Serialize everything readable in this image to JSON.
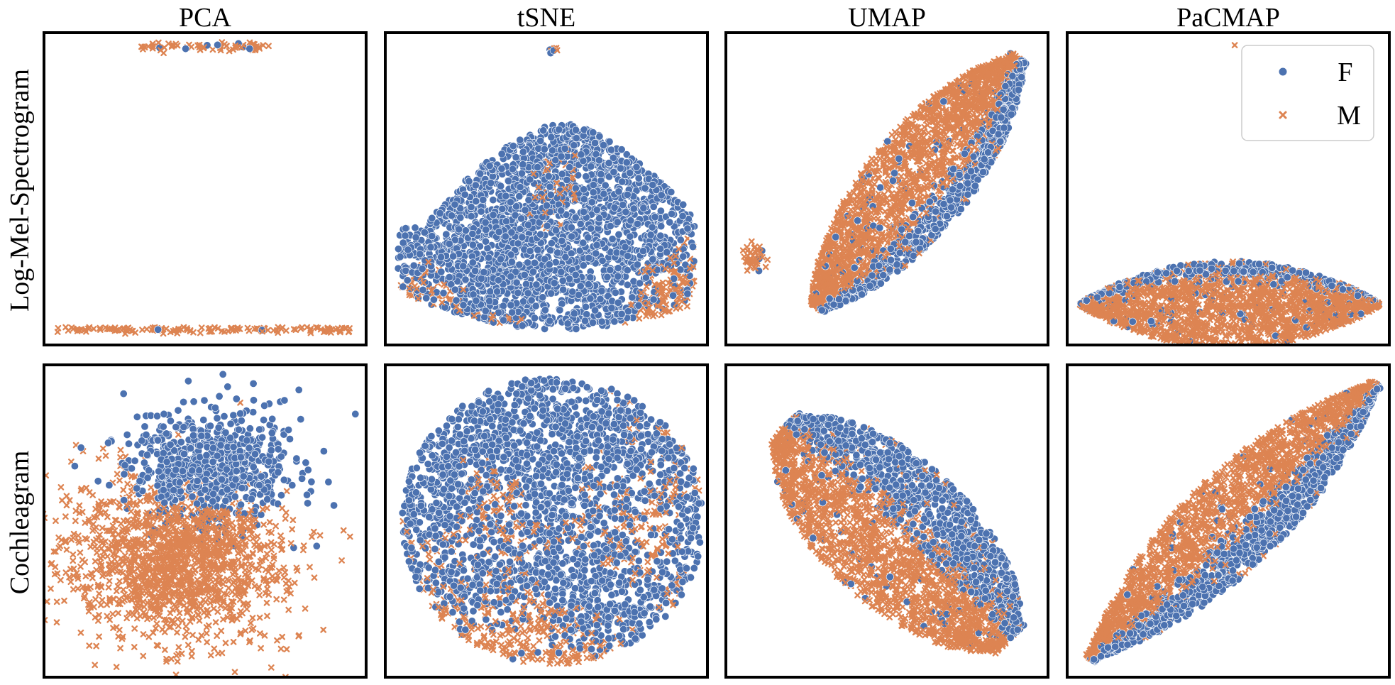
{
  "colors": {
    "F": "#4C72B0",
    "M": "#DD8452",
    "frame": "#000000",
    "background": "#ffffff"
  },
  "column_titles": [
    "PCA",
    "tSNE",
    "UMAP",
    "PaCMAP"
  ],
  "row_labels": [
    "Log-Mel-Spectrogram",
    "Cochleagram"
  ],
  "legend": {
    "entries": [
      {
        "label": "F",
        "marker": "circle"
      },
      {
        "label": "M",
        "marker": "x"
      }
    ],
    "placement": "top-right of Log-Mel-Spectrogram / PaCMAP panel"
  },
  "chart_data": [
    {
      "type": "scatter",
      "row": "Log-Mel-Spectrogram",
      "title": "PCA",
      "xlim": [
        0,
        1
      ],
      "ylim": [
        0,
        1
      ],
      "shape": "two-bands",
      "bands": [
        {
          "y": 0.955,
          "x_start": 0.29,
          "x_end": 0.7,
          "spread": 0.006,
          "n": 70,
          "f_fraction": 0.15
        },
        {
          "y": 0.05,
          "x_start": 0.04,
          "x_end": 0.96,
          "spread": 0.005,
          "n": 140,
          "f_fraction": 0.04
        }
      ],
      "outliers": []
    },
    {
      "type": "scatter",
      "row": "Log-Mel-Spectrogram",
      "title": "tSNE",
      "xlim": [
        0,
        1
      ],
      "ylim": [
        0,
        1
      ],
      "shape": "mound",
      "region": {
        "x0": 0.04,
        "x1": 0.96,
        "y_bottom": 0.05,
        "y_top_center": 0.71,
        "y_top_edge": 0.38,
        "center_x": 0.55
      },
      "n": 2600,
      "f_region": "upper-middle and right band",
      "f_fraction": 0.42,
      "outliers": [
        {
          "x": 0.52,
          "y": 0.94,
          "group": "F"
        },
        {
          "x": 0.525,
          "y": 0.945,
          "group": "M"
        }
      ]
    },
    {
      "type": "scatter",
      "row": "Log-Mel-Spectrogram",
      "title": "UMAP",
      "xlim": [
        0,
        1
      ],
      "ylim": [
        0,
        1
      ],
      "shape": "tilted-leaf",
      "region": {
        "from": [
          0.28,
          0.12
        ],
        "to": [
          0.91,
          0.92
        ],
        "width": 0.32
      },
      "n": 2800,
      "f_region": "lower-right edge band",
      "f_fraction": 0.3,
      "island": {
        "x": 0.08,
        "y": 0.28,
        "r": 0.035,
        "n": 40
      }
    },
    {
      "type": "scatter",
      "row": "Log-Mel-Spectrogram",
      "title": "PaCMAP",
      "xlim": [
        0,
        1
      ],
      "ylim": [
        0,
        1
      ],
      "shape": "flat-lens",
      "region": {
        "x0": 0.04,
        "x1": 0.97,
        "y_center": 0.13,
        "half_height": 0.14
      },
      "n": 2400,
      "f_region": "upper rim",
      "f_fraction": 0.3,
      "outliers": [
        {
          "x": 0.52,
          "y": 0.96,
          "group": "M"
        }
      ]
    },
    {
      "type": "scatter",
      "row": "Cochleagram",
      "title": "PCA",
      "xlim": [
        0,
        1
      ],
      "ylim": [
        0,
        1
      ],
      "shape": "blob",
      "f_cluster": {
        "cx": 0.52,
        "cy": 0.68,
        "rx": 0.26,
        "ry": 0.2,
        "n": 700
      },
      "m_cluster": {
        "cx": 0.4,
        "cy": 0.38,
        "rx": 0.34,
        "ry": 0.26,
        "n": 1600
      },
      "outliers": [
        {
          "x": 0.65,
          "y": 0.94,
          "group": "F"
        },
        {
          "x": 0.57,
          "y": 0.93,
          "group": "F"
        },
        {
          "x": 0.9,
          "y": 0.55,
          "group": "F"
        },
        {
          "x": 0.95,
          "y": 0.45,
          "group": "M"
        },
        {
          "x": 0.93,
          "y": 0.47,
          "group": "M"
        },
        {
          "x": 0.05,
          "y": 0.42,
          "group": "M"
        },
        {
          "x": 0.38,
          "y": 0.05,
          "group": "M"
        }
      ]
    },
    {
      "type": "scatter",
      "row": "Cochleagram",
      "title": "tSNE",
      "xlim": [
        0,
        1
      ],
      "ylim": [
        0,
        1
      ],
      "shape": "round-blob",
      "region": {
        "cx": 0.52,
        "cy": 0.5,
        "rx": 0.47,
        "ry": 0.46
      },
      "n": 2800,
      "f_region": "upper half and lower-left patches",
      "f_fraction": 0.42
    },
    {
      "type": "scatter",
      "row": "Cochleagram",
      "title": "UMAP",
      "xlim": [
        0,
        1
      ],
      "ylim": [
        0,
        1
      ],
      "shape": "tilted-slab",
      "region": {
        "from": [
          0.18,
          0.8
        ],
        "to": [
          0.88,
          0.12
        ],
        "width": 0.46
      },
      "n": 3000,
      "f_region": "lower-left half",
      "f_fraction": 0.38
    },
    {
      "type": "scatter",
      "row": "Cochleagram",
      "title": "PaCMAP",
      "xlim": [
        0,
        1
      ],
      "ylim": [
        0,
        1
      ],
      "shape": "diagonal-leaf",
      "region": {
        "from": [
          0.07,
          0.06
        ],
        "to": [
          0.96,
          0.94
        ],
        "width": 0.3
      },
      "n": 2800,
      "f_region": "lower-right edge band",
      "f_fraction": 0.38
    }
  ]
}
